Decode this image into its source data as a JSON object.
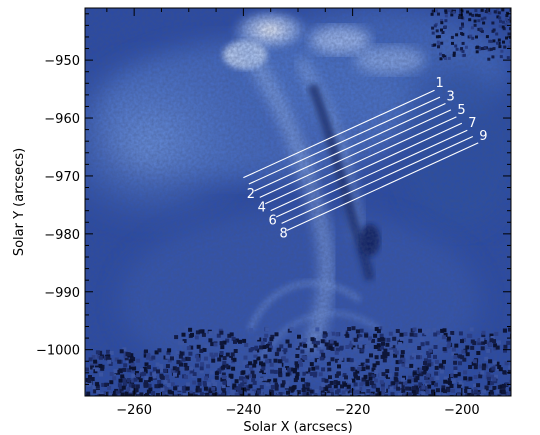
{
  "x_axis": {
    "title": "Solar X (arcsecs)",
    "range": [
      -269,
      -191
    ],
    "ticks": [
      -260,
      -240,
      -220,
      -200
    ],
    "tick_labels": [
      "−260",
      "−240",
      "−220",
      "−200"
    ]
  },
  "y_axis": {
    "title": "Solar Y (arcsecs)",
    "range": [
      -1008,
      -941
    ],
    "ticks": [
      -950,
      -960,
      -970,
      -980,
      -990,
      -1000
    ],
    "tick_labels": [
      "−950",
      "−960",
      "−970",
      "−980",
      "−990",
      "−1000"
    ]
  },
  "slits": [
    {
      "label": "1",
      "label_side": "end",
      "start": [
        -240.0,
        -970.3
      ],
      "end": [
        -205.0,
        -955.2
      ]
    },
    {
      "label": "2",
      "label_side": "start",
      "start": [
        -239.0,
        -971.4
      ],
      "end": [
        -204.0,
        -956.4
      ]
    },
    {
      "label": "3",
      "label_side": "end",
      "start": [
        -238.0,
        -972.6
      ],
      "end": [
        -203.0,
        -957.5
      ]
    },
    {
      "label": "4",
      "label_side": "start",
      "start": [
        -237.0,
        -973.7
      ],
      "end": [
        -202.0,
        -958.6
      ]
    },
    {
      "label": "5",
      "label_side": "end",
      "start": [
        -236.0,
        -974.8
      ],
      "end": [
        -201.0,
        -959.8
      ]
    },
    {
      "label": "6",
      "label_side": "start",
      "start": [
        -235.0,
        -976.0
      ],
      "end": [
        -200.0,
        -960.9
      ]
    },
    {
      "label": "7",
      "label_side": "end",
      "start": [
        -234.0,
        -977.1
      ],
      "end": [
        -199.0,
        -962.1
      ]
    },
    {
      "label": "8",
      "label_side": "start",
      "start": [
        -233.0,
        -978.2
      ],
      "end": [
        -198.0,
        -963.2
      ]
    },
    {
      "label": "9",
      "label_side": "end",
      "start": [
        -232.0,
        -979.4
      ],
      "end": [
        -197.0,
        -964.3
      ]
    }
  ],
  "colors": {
    "background": "#22439a",
    "bright": "#e8f2ff",
    "dark": "#0a1230",
    "slit": "#ffffff"
  }
}
